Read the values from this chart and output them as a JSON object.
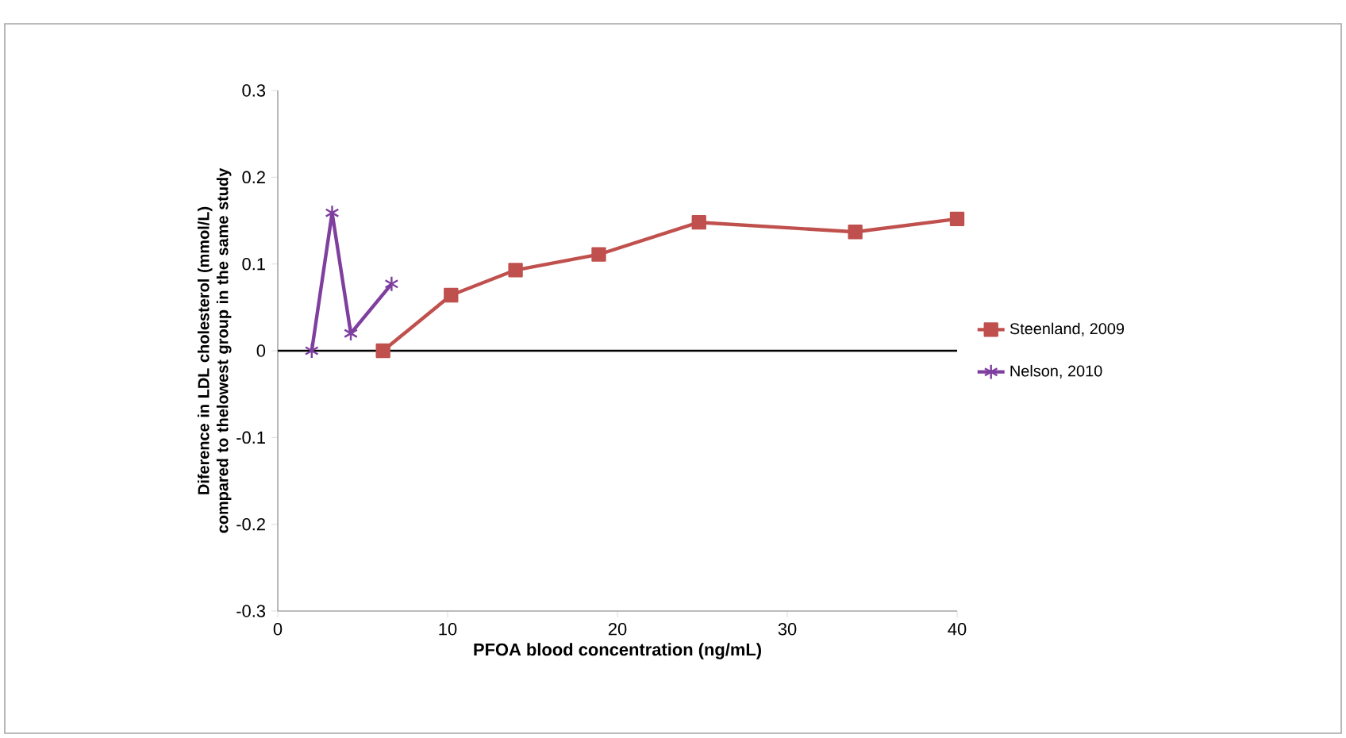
{
  "chart_data": {
    "type": "line",
    "xlabel": "PFOA blood concentration (ng/mL)",
    "ylabel": "Diference in LDL cholesterol (mmol/L) compared to thelowest group in the same study",
    "xlim": [
      0,
      40
    ],
    "xticks": [
      0,
      10,
      20,
      30,
      40
    ],
    "ylim": [
      -0.3,
      0.3
    ],
    "yticks": [
      -0.3,
      -0.2,
      -0.1,
      0,
      0.1,
      0.2,
      0.3
    ],
    "series": [
      {
        "name": "Steenland, 2009",
        "color": "#c0504d",
        "marker": "square",
        "x": [
          6.2,
          10.2,
          14.0,
          18.9,
          24.8,
          34.0,
          40.0
        ],
        "values": [
          0.0,
          0.064,
          0.093,
          0.111,
          0.148,
          0.137,
          0.152
        ]
      },
      {
        "name": "Nelson, 2010",
        "color": "#7f3f9f",
        "marker": "cross",
        "x": [
          2.0,
          3.2,
          4.3,
          6.7
        ],
        "values": [
          0.0,
          0.159,
          0.02,
          0.077
        ]
      }
    ],
    "ref_lines": [
      {
        "axis": "y",
        "value": 0,
        "color": "#000000"
      }
    ],
    "grid": false,
    "legend": "right"
  }
}
